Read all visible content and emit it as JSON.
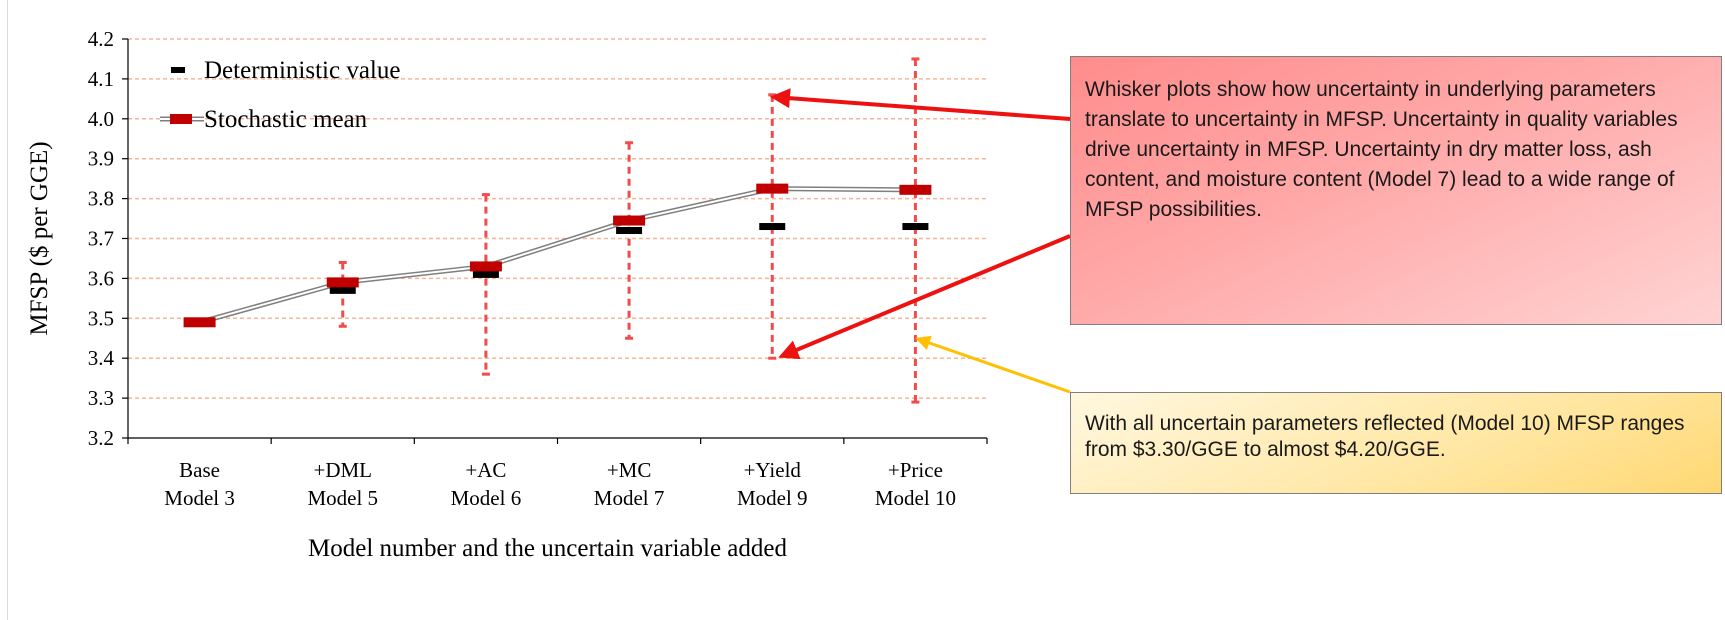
{
  "chart_data": {
    "type": "line",
    "title": "",
    "xlabel": "Model number and the uncertain variable added",
    "ylabel": "MFSP ($ per GGE)",
    "ylim": [
      3.2,
      4.2
    ],
    "yticks": [
      "3.2",
      "3.3",
      "3.4",
      "3.5",
      "3.6",
      "3.7",
      "3.8",
      "3.9",
      "4.0",
      "4.1",
      "4.2"
    ],
    "grid": true,
    "legend_position": "top-left",
    "categories": [
      [
        "Base",
        "Model 3"
      ],
      [
        "+DML",
        "Model 5"
      ],
      [
        "+AC",
        "Model 6"
      ],
      [
        "+MC",
        "Model 7"
      ],
      [
        "+Yield",
        "Model 9"
      ],
      [
        "+Price",
        "Model 10"
      ]
    ],
    "series": [
      {
        "name": "Deterministic value",
        "values": [
          3.49,
          3.57,
          3.61,
          3.72,
          3.73,
          3.73
        ],
        "color": "#000000"
      },
      {
        "name": "Stochastic mean",
        "values": [
          3.49,
          3.59,
          3.63,
          3.745,
          3.825,
          3.822
        ],
        "color": "#c00000"
      }
    ],
    "whiskers": [
      {
        "low": 3.49,
        "high": 3.49
      },
      {
        "low": 3.48,
        "high": 3.64
      },
      {
        "low": 3.36,
        "high": 3.81
      },
      {
        "low": 3.45,
        "high": 3.94
      },
      {
        "low": 3.4,
        "high": 4.06
      },
      {
        "low": 3.29,
        "high": 4.15
      }
    ],
    "whisker_color": "#f04c4c",
    "grid_color": "#f6b596"
  },
  "callouts": {
    "top": "Whisker plots show how uncertainty in underlying parameters translate to uncertainty in MFSP. Uncertainty in quality variables drive uncertainty in MFSP. Uncertainty in dry matter loss, ash content, and moisture content (Model 7) lead to a wide range of MFSP possibilities.",
    "bottom": "With all uncertain parameters reflected (Model 10) MFSP ranges from $3.30/GGE to almost $4.20/GGE."
  },
  "arrows": {
    "red_color": "#ee1111",
    "yellow_color": "#ffc000"
  }
}
